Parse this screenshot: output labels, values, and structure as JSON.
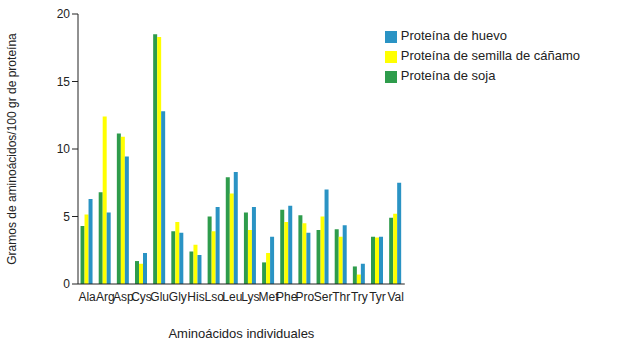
{
  "chart_data": {
    "type": "bar",
    "x_label": "Aminoácidos individuales",
    "y_label": "Gramos de aminoácidos/100 gr de proteína",
    "categories": [
      "Ala",
      "Arg",
      "Asp",
      "Cys",
      "Glu",
      "Gly",
      "His",
      "Lso",
      "Leu",
      "Lys",
      "Met",
      "Phe",
      "Pro",
      "Ser",
      "Thr",
      "Try",
      "Tyr",
      "Val"
    ],
    "series": [
      {
        "name": "Proteína de soja",
        "color": "#2e9c4c",
        "values": [
          4.3,
          6.8,
          11.15,
          1.7,
          18.5,
          3.9,
          2.4,
          5.0,
          7.9,
          5.3,
          1.6,
          5.5,
          5.1,
          4.0,
          4.05,
          1.3,
          3.5,
          4.9
        ]
      },
      {
        "name": "Proteína de semilla de cáñamo",
        "color": "#ffff00",
        "values": [
          5.15,
          12.4,
          10.9,
          1.5,
          18.3,
          4.6,
          2.9,
          3.9,
          6.7,
          4.0,
          2.3,
          4.6,
          4.5,
          5.0,
          3.5,
          0.7,
          3.45,
          5.2
        ]
      },
      {
        "name": "Proteína de huevo",
        "color": "#2a93c4",
        "values": [
          6.3,
          5.3,
          9.45,
          2.3,
          12.8,
          3.8,
          2.15,
          5.7,
          8.3,
          5.7,
          3.5,
          5.8,
          3.8,
          7.0,
          4.35,
          1.5,
          3.5,
          7.5
        ]
      }
    ],
    "ylim": [
      0,
      20
    ],
    "yticks": [
      0,
      5,
      10,
      15,
      20
    ],
    "grid": false,
    "legend": "upper right"
  }
}
